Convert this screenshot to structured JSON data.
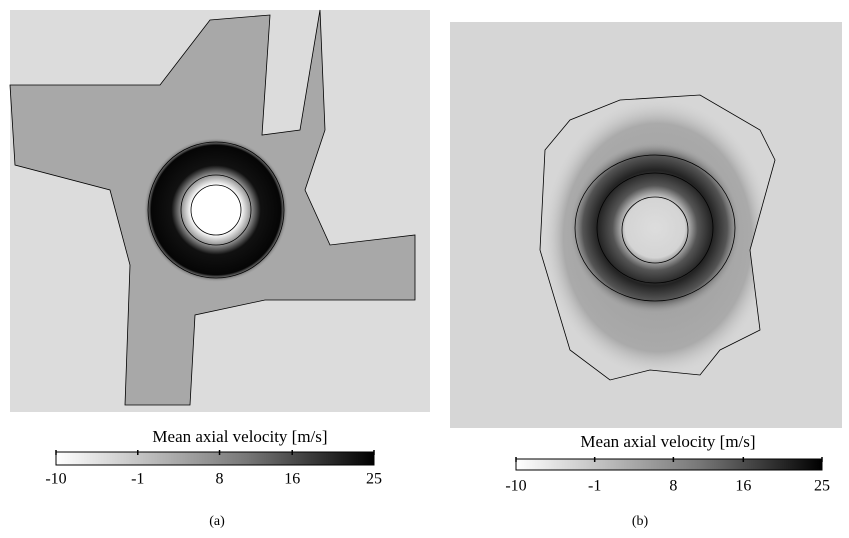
{
  "panels": [
    {
      "colorbar": {
        "title": "Mean axial velocity [m/s]",
        "ticks": [
          -10,
          -1,
          8,
          16,
          25
        ]
      },
      "caption": "(a)"
    },
    {
      "colorbar": {
        "title": "Mean axial velocity [m/s]",
        "ticks": [
          -10,
          -1,
          8,
          16,
          25
        ]
      },
      "caption": "(b)"
    }
  ]
}
